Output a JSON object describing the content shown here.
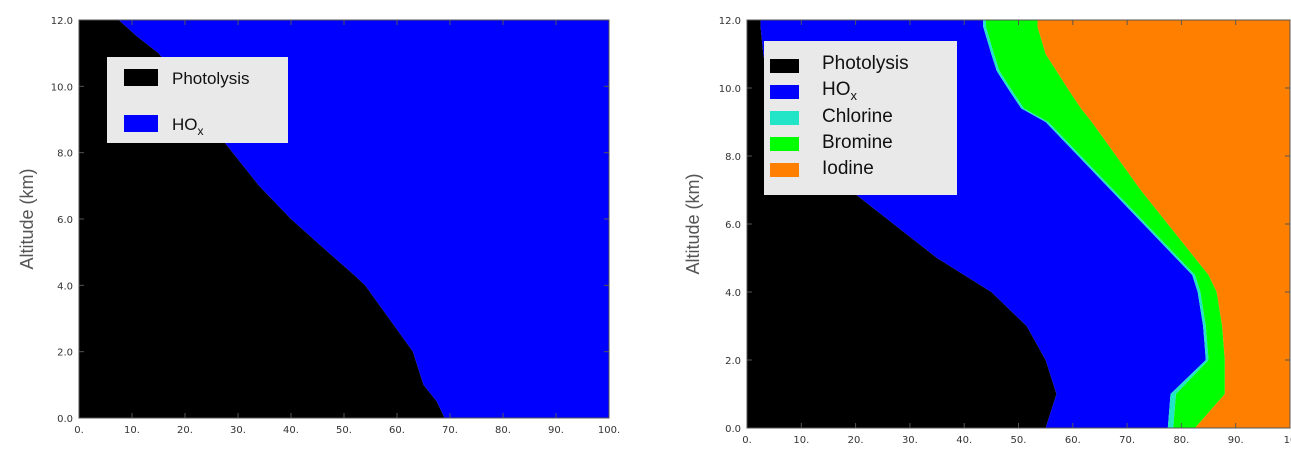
{
  "charts": [
    {
      "type": "area",
      "ylabel": "Altitude  (km)",
      "xlim": [
        0,
        100
      ],
      "ylim": [
        0,
        12
      ],
      "x_ticks": [
        "0.",
        "10.",
        "20.",
        "30.",
        "40.",
        "50.",
        "60.",
        "70.",
        "80.",
        "90.",
        "100."
      ],
      "y_ticks": [
        "0.0",
        "2.0",
        "4.0",
        "6.0",
        "8.0",
        "10.0",
        "12.0"
      ],
      "y_tick_values": [
        0,
        2,
        4,
        6,
        8,
        10,
        12
      ],
      "altitudes": [
        0,
        0.5,
        1,
        2,
        3,
        4,
        4.3,
        5,
        6,
        7,
        8,
        9,
        10,
        11,
        11.5,
        12
      ],
      "series": [
        {
          "name": "Photolysis",
          "color": "#000000",
          "boundaries": [
            69,
            67.5,
            65,
            63,
            58.5,
            54,
            52,
            47,
            40,
            34,
            29,
            24,
            20,
            15,
            11,
            7.5
          ]
        },
        {
          "name": "HO",
          "subscript": "x",
          "color": "#0000ff",
          "boundaries": [
            100,
            100,
            100,
            100,
            100,
            100,
            100,
            100,
            100,
            100,
            100,
            100,
            100,
            100,
            100,
            100
          ]
        }
      ]
    },
    {
      "type": "area",
      "ylabel": "Altitude  (km)",
      "xlim": [
        0,
        100
      ],
      "ylim": [
        0,
        12
      ],
      "x_ticks": [
        "0.",
        "10.",
        "20.",
        "30.",
        "40.",
        "50.",
        "60.",
        "70.",
        "80.",
        "90.",
        "10"
      ],
      "y_ticks": [
        "0.0",
        "2.0",
        "4.0",
        "6.0",
        "8.0",
        "10.0",
        "12.0"
      ],
      "y_tick_values": [
        0,
        2,
        4,
        6,
        8,
        10,
        12
      ],
      "altitudes": [
        0,
        1,
        2,
        3,
        4,
        4.5,
        5,
        6,
        7,
        8,
        9,
        9.4,
        10,
        10.5,
        11,
        11.8,
        12
      ],
      "series": [
        {
          "name": "Photolysis",
          "color": "#000000",
          "boundaries": [
            55,
            57,
            55,
            51.5,
            45,
            40,
            35,
            27,
            19,
            12,
            7,
            5,
            4,
            3.5,
            3,
            2.5,
            2.5
          ]
        },
        {
          "name": "HO",
          "subscript": "x",
          "color": "#0000ff",
          "boundaries": [
            77.5,
            78,
            84.5,
            84,
            83,
            82,
            79,
            73,
            67,
            61,
            55,
            50.5,
            48,
            46,
            45,
            43.5,
            43.5
          ]
        },
        {
          "name": "Chlorine",
          "color": "#22e5c8",
          "boundaries": [
            78.5,
            79,
            85,
            84.5,
            83.5,
            82.5,
            79.5,
            73.5,
            67.5,
            61.5,
            55.5,
            51,
            48.5,
            46.5,
            45.5,
            44,
            44
          ]
        },
        {
          "name": "Bromine",
          "color": "#00ff00",
          "boundaries": [
            82.5,
            88,
            88,
            87.5,
            86.5,
            85,
            82.5,
            77.5,
            72.5,
            68,
            63.5,
            61.5,
            59,
            57,
            55,
            53.5,
            53.5
          ]
        },
        {
          "name": "Iodine",
          "color": "#ff8000",
          "boundaries": [
            100,
            100,
            100,
            100,
            100,
            100,
            100,
            100,
            100,
            100,
            100,
            100,
            100,
            100,
            100,
            100,
            100
          ]
        }
      ]
    }
  ]
}
